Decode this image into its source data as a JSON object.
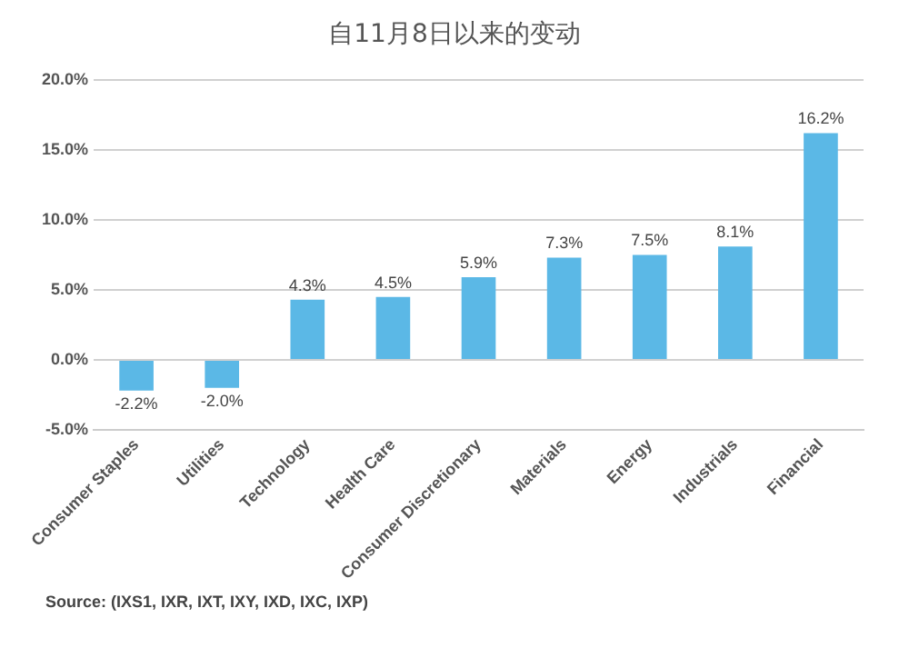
{
  "chart_data": {
    "type": "bar",
    "title": "自11月8日以来的变动",
    "categories": [
      "Consumer Staples",
      "Utilities",
      "Technology",
      "Health Care",
      "Consumer Discretionary",
      "Materials",
      "Energy",
      "Industrials",
      "Financial"
    ],
    "values": [
      -2.2,
      -2.0,
      4.3,
      4.5,
      5.9,
      7.3,
      7.5,
      8.1,
      16.2
    ],
    "value_labels": [
      "-2.2%",
      "-2.0%",
      "4.3%",
      "4.5%",
      "5.9%",
      "7.3%",
      "7.5%",
      "8.1%",
      "16.2%"
    ],
    "color": "#5bb8e6",
    "ylim": [
      -5,
      20
    ],
    "yticks": [
      {
        "value": -5,
        "label": "-5.0%"
      },
      {
        "value": 0,
        "label": "0.0%"
      },
      {
        "value": 5,
        "label": "5.0%"
      },
      {
        "value": 10,
        "label": "10.0%"
      },
      {
        "value": 15,
        "label": "15.0%"
      },
      {
        "value": 20,
        "label": "20.0%"
      }
    ],
    "grid": "y",
    "annotations": [
      "Source: (IXS1, IXR, IXT, IXY, IXD, IXC, IXP)"
    ]
  }
}
